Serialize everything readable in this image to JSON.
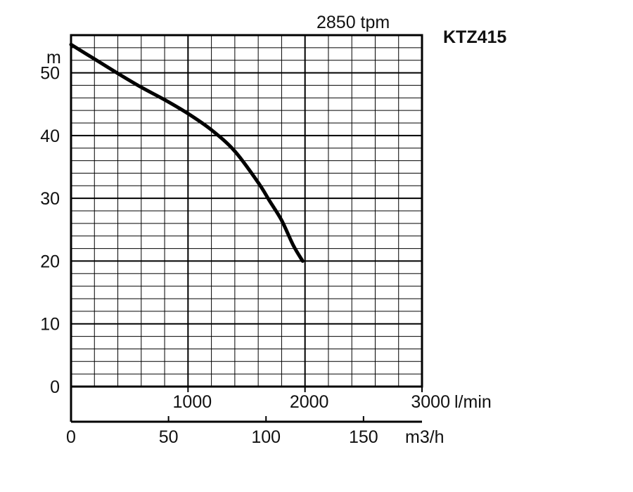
{
  "chart_data": {
    "type": "line",
    "title": "KTZ415",
    "speed_label": "2850 tpm",
    "ylabel": "m",
    "ylim": [
      0,
      56
    ],
    "yticks": [
      0,
      10,
      20,
      30,
      40,
      50
    ],
    "x_primary": {
      "unit_label": "l/min",
      "lim": [
        0,
        3000
      ],
      "ticks": [
        1000,
        2000,
        3000
      ],
      "tick_labels": [
        "1000",
        "2000",
        "3000"
      ]
    },
    "x_secondary": {
      "unit_label": "m3/h",
      "lim": [
        0,
        180
      ],
      "ticks": [
        0,
        50,
        100,
        150
      ],
      "tick_labels": [
        "0",
        "50",
        "100",
        "150"
      ]
    },
    "grid": true,
    "series": [
      {
        "name": "",
        "color": "#000000",
        "x": [
          0,
          200,
          400,
          600,
          800,
          1000,
          1200,
          1400,
          1600,
          1700,
          1800,
          1900,
          1980
        ],
        "y": [
          54.5,
          52.2,
          49.9,
          47.7,
          45.7,
          43.5,
          40.9,
          37.5,
          32.5,
          29.5,
          26.5,
          22.5,
          20
        ]
      }
    ]
  }
}
